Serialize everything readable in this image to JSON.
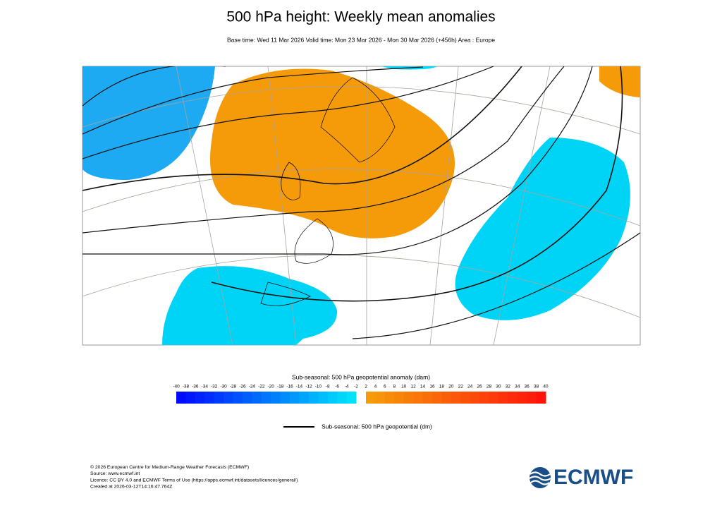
{
  "header": {
    "title": "500 hPa height: Weekly mean anomalies",
    "subtitle": "Base time: Wed 11 Mar 2026 Valid time: Mon 23 Mar 2026 - Mon 30 Mar 2026 (+456h) Area : Europe"
  },
  "colorbar": {
    "title": "Sub-seasonal: 500 hPa geopotential anomaly (dam)",
    "negative_ticks": [
      -40,
      -38,
      -36,
      -34,
      -32,
      -30,
      -28,
      -26,
      -24,
      -22,
      -20,
      -18,
      -16,
      -14,
      -12,
      -10,
      -8,
      -6,
      -4,
      -2
    ],
    "positive_ticks": [
      2,
      4,
      6,
      8,
      10,
      12,
      14,
      16,
      18,
      20,
      22,
      24,
      26,
      28,
      30,
      32,
      34,
      36,
      38,
      40
    ]
  },
  "legend": {
    "label": "Sub-seasonal: 500 hPa geopotential (dm)"
  },
  "footer": {
    "lines": [
      "© 2026 European Centre for Medium-Range Weather Forecasts (ECMWF)",
      "Source: www.ecmwf.int",
      "Licence: CC BY 4.0 and ECMWF Terms of Use (https://apps.ecmwf.int/datasets/licences/general/)",
      "Created at 2026-03-12T14:16:47.764Z"
    ]
  },
  "logo": "ECMWF"
}
